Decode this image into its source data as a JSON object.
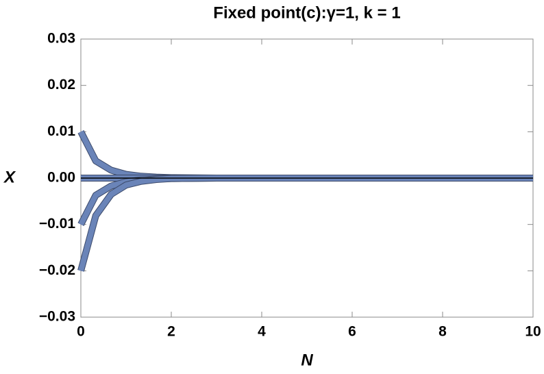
{
  "chart_data": {
    "type": "line",
    "title": "Fixed point(c):γ=1, k = 1",
    "xlabel": "N",
    "ylabel": "X",
    "x": [
      0,
      0.33,
      0.67,
      1,
      1.33,
      1.67,
      2,
      3,
      4,
      5,
      6,
      7,
      8,
      9,
      10
    ],
    "series": [
      {
        "color": "#6a84b8",
        "values": [
          0.01,
          0.0037,
          0.0017,
          0.0008,
          0.0004,
          0.0002,
          0.0001,
          0,
          0,
          0,
          0,
          0,
          0,
          0,
          0
        ]
      },
      {
        "color": "#6a84b8",
        "values": [
          0,
          0,
          0,
          0,
          0,
          0,
          0,
          0,
          0,
          0,
          0,
          0,
          0,
          0,
          0
        ]
      },
      {
        "color": "#6a84b8",
        "values": [
          -0.01,
          -0.0037,
          -0.0017,
          -0.0008,
          -0.0004,
          -0.0002,
          -0.0001,
          0,
          0,
          0,
          0,
          0,
          0,
          0,
          0
        ]
      },
      {
        "color": "#6a84b8",
        "values": [
          -0.02,
          -0.0081,
          -0.0035,
          -0.0015,
          -0.0007,
          -0.0003,
          -0.0001,
          0,
          0,
          0,
          0,
          0,
          0,
          0,
          0
        ]
      }
    ],
    "xlim": [
      0,
      10
    ],
    "xticks": [
      0,
      2,
      4,
      6,
      8,
      10
    ],
    "ylim": [
      -0.03,
      0.03
    ],
    "yticks": [
      {
        "value": -0.03,
        "label": "−0.03"
      },
      {
        "value": -0.02,
        "label": "−0.02"
      },
      {
        "value": -0.01,
        "label": "−0.01"
      },
      {
        "value": 0,
        "label": "0.00"
      },
      0.01,
      0.02,
      0.03
    ]
  }
}
